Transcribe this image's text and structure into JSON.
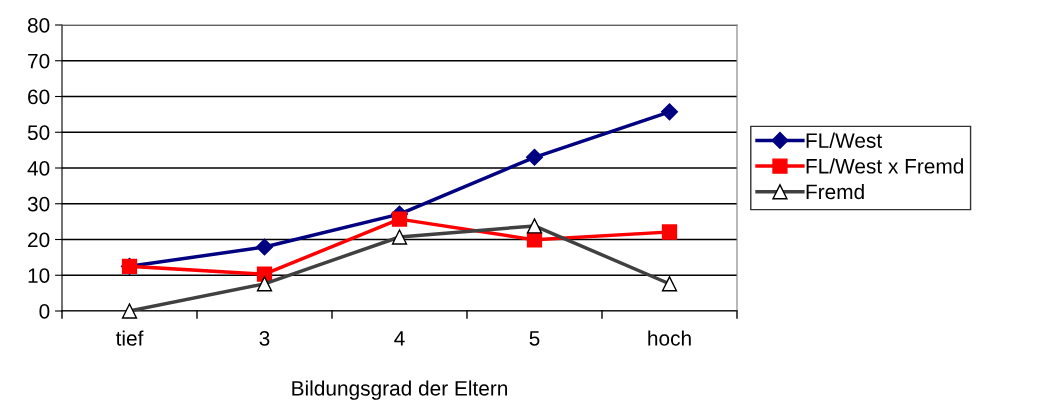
{
  "chart_data": {
    "type": "line",
    "xlabel": "Bildungsgrad der Eltern",
    "categories": [
      "tief",
      "3",
      "4",
      "5",
      "hoch"
    ],
    "series": [
      {
        "name": "FL/West",
        "color": "#000080",
        "marker": "diamond",
        "values": [
          12.5,
          17.9,
          27.1,
          43,
          55.7
        ]
      },
      {
        "name": "FL/West x Fremd",
        "color": "#ff0000",
        "marker": "square",
        "values": [
          12.5,
          10.3,
          25.7,
          19.9,
          22.1
        ]
      },
      {
        "name": "Fremd",
        "color": "#404040",
        "marker": "triangle",
        "values": [
          0,
          7.6,
          20.7,
          23.8,
          7.6
        ]
      }
    ],
    "ylim": [
      0,
      80
    ],
    "yticks": [
      0,
      10,
      20,
      30,
      40,
      50,
      60,
      70,
      80
    ],
    "grid": "y",
    "legend": "right",
    "line_style": "solid"
  }
}
